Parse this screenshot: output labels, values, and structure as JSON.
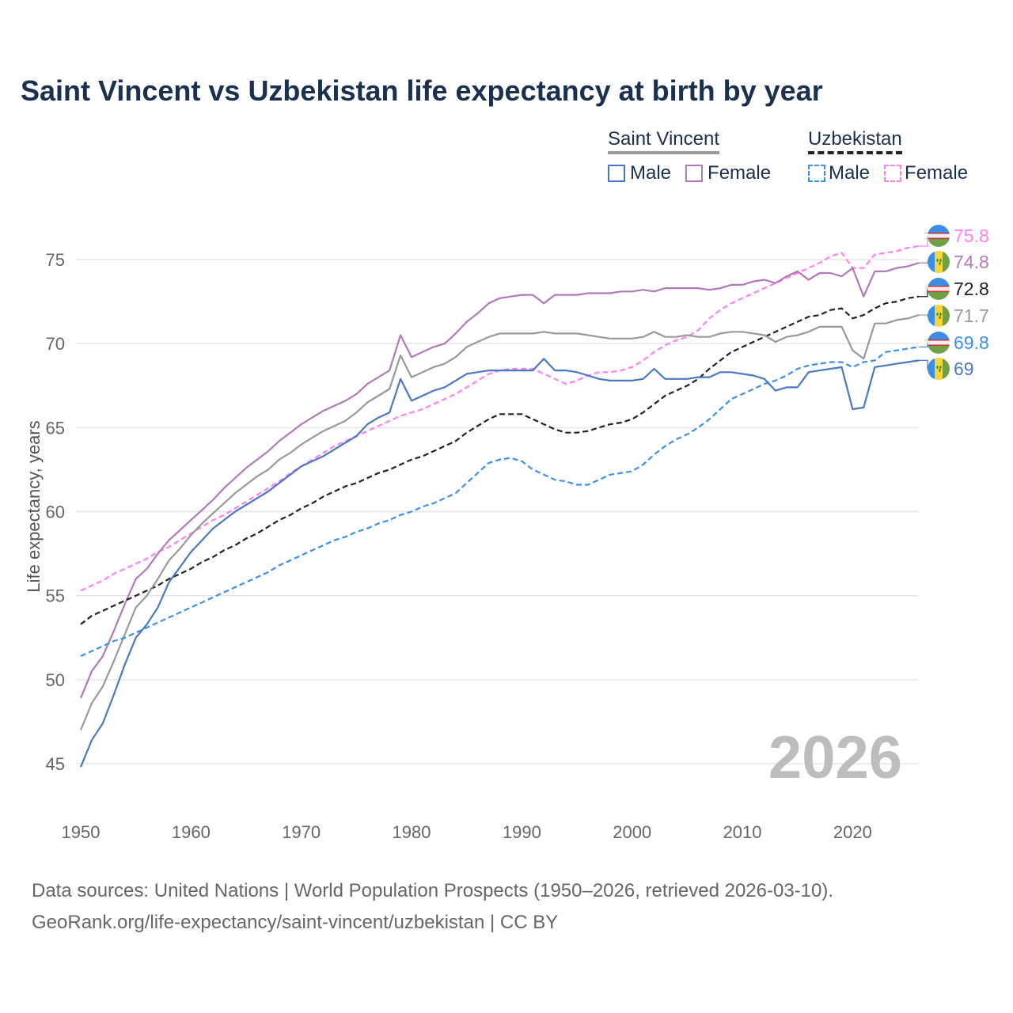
{
  "chart_data": {
    "type": "line",
    "title": "Saint Vincent vs Uzbekistan life expectancy at birth by year",
    "xlabel": "",
    "ylabel": "Life expectancy, years",
    "xlim": [
      1950,
      2026
    ],
    "ylim": [
      43,
      77
    ],
    "x_ticks": [
      1950,
      1960,
      1970,
      1980,
      1990,
      2000,
      2010,
      2020
    ],
    "x_tick_labels": [
      "1950",
      "1960",
      "1970",
      "1980",
      "1990",
      "2000",
      "2010",
      "2020"
    ],
    "y_ticks": [
      45,
      50,
      55,
      60,
      65,
      70,
      75
    ],
    "y_tick_labels": [
      "45",
      "50",
      "55",
      "60",
      "65",
      "70",
      "75"
    ],
    "grid": true,
    "watermark_year": "2026",
    "legend": {
      "placement": "top-right",
      "groups": [
        {
          "label": "Saint Vincent",
          "items": [
            "Male",
            "Female"
          ]
        },
        {
          "label": "Uzbekistan",
          "items": [
            "Male",
            "Female"
          ]
        }
      ]
    },
    "x_start": 1950,
    "series": [
      {
        "name": "Uzbekistan Female",
        "color": "#ff80f0",
        "dashed": true,
        "flag": "uzbekistan",
        "end_label": "75.8",
        "values": [
          55.3,
          55.6,
          55.9,
          56.3,
          56.6,
          56.9,
          57.2,
          57.6,
          57.9,
          58.3,
          58.7,
          59.1,
          59.5,
          59.8,
          60.2,
          60.6,
          61.0,
          61.4,
          61.8,
          62.3,
          62.7,
          63.1,
          63.5,
          63.9,
          64.2,
          64.5,
          64.8,
          65.1,
          65.4,
          65.7,
          65.9,
          66.1,
          66.4,
          66.7,
          67.0,
          67.4,
          67.8,
          68.2,
          68.4,
          68.5,
          68.5,
          68.5,
          68.2,
          67.9,
          67.6,
          67.8,
          68.1,
          68.3,
          68.3,
          68.4,
          68.6,
          69.0,
          69.5,
          69.9,
          70.2,
          70.4,
          70.8,
          71.5,
          72.0,
          72.4,
          72.7,
          73.0,
          73.3,
          73.6,
          73.9,
          74.2,
          74.5,
          74.8,
          75.2,
          75.4,
          74.5,
          74.5,
          75.3,
          75.4,
          75.5,
          75.7,
          75.8
        ]
      },
      {
        "name": "Saint Vincent Female",
        "color": "#b07ab8",
        "dashed": false,
        "flag": "saint-vincent",
        "end_label": "74.8",
        "values": [
          48.9,
          50.5,
          51.4,
          52.9,
          54.5,
          56.0,
          56.6,
          57.5,
          58.3,
          58.9,
          59.5,
          60.1,
          60.7,
          61.4,
          62.0,
          62.6,
          63.1,
          63.6,
          64.2,
          64.7,
          65.2,
          65.6,
          66.0,
          66.3,
          66.6,
          67.0,
          67.6,
          68.0,
          68.4,
          70.5,
          69.2,
          69.5,
          69.8,
          70.0,
          70.6,
          71.3,
          71.8,
          72.4,
          72.7,
          72.8,
          72.9,
          72.9,
          72.4,
          72.9,
          72.9,
          72.9,
          73.0,
          73.0,
          73.0,
          73.1,
          73.1,
          73.2,
          73.1,
          73.3,
          73.3,
          73.3,
          73.3,
          73.2,
          73.3,
          73.5,
          73.5,
          73.7,
          73.8,
          73.6,
          74.0,
          74.3,
          73.8,
          74.2,
          74.2,
          74.0,
          74.5,
          72.8,
          74.3,
          74.3,
          74.5,
          74.6,
          74.8
        ]
      },
      {
        "name": "Uzbekistan",
        "color": "#222222",
        "dashed": true,
        "flag": "uzbekistan",
        "end_label": "72.8",
        "values": [
          53.3,
          53.8,
          54.1,
          54.4,
          54.7,
          55.0,
          55.3,
          55.6,
          56.0,
          56.3,
          56.6,
          57.0,
          57.3,
          57.7,
          58.0,
          58.4,
          58.7,
          59.1,
          59.5,
          59.8,
          60.2,
          60.5,
          60.9,
          61.2,
          61.5,
          61.7,
          62.0,
          62.3,
          62.5,
          62.8,
          63.1,
          63.3,
          63.6,
          63.9,
          64.2,
          64.7,
          65.1,
          65.5,
          65.8,
          65.8,
          65.8,
          65.5,
          65.2,
          64.9,
          64.7,
          64.7,
          64.8,
          65.0,
          65.2,
          65.3,
          65.5,
          65.9,
          66.4,
          66.9,
          67.2,
          67.5,
          67.9,
          68.5,
          69.0,
          69.5,
          69.8,
          70.1,
          70.4,
          70.7,
          71.0,
          71.3,
          71.6,
          71.7,
          72.0,
          72.1,
          71.5,
          71.7,
          72.1,
          72.4,
          72.5,
          72.7,
          72.8
        ]
      },
      {
        "name": "Saint Vincent",
        "color": "#999999",
        "dashed": false,
        "flag": "saint-vincent",
        "end_label": "71.7",
        "values": [
          47.0,
          48.6,
          49.6,
          51.1,
          52.7,
          54.3,
          55.0,
          56.0,
          57.1,
          57.8,
          58.6,
          59.3,
          59.9,
          60.5,
          61.1,
          61.6,
          62.1,
          62.5,
          63.1,
          63.5,
          64.0,
          64.4,
          64.8,
          65.1,
          65.4,
          65.9,
          66.5,
          66.9,
          67.3,
          69.3,
          68.0,
          68.3,
          68.6,
          68.8,
          69.2,
          69.8,
          70.1,
          70.4,
          70.6,
          70.6,
          70.6,
          70.6,
          70.7,
          70.6,
          70.6,
          70.6,
          70.5,
          70.4,
          70.3,
          70.3,
          70.3,
          70.4,
          70.7,
          70.4,
          70.4,
          70.5,
          70.4,
          70.4,
          70.6,
          70.7,
          70.7,
          70.6,
          70.5,
          70.1,
          70.4,
          70.5,
          70.7,
          71.0,
          71.0,
          71.0,
          69.6,
          69.1,
          71.2,
          71.2,
          71.4,
          71.5,
          71.7
        ]
      },
      {
        "name": "Uzbekistan Male",
        "color": "#3d8ef5",
        "dashed": true,
        "flag": "uzbekistan",
        "end_label": "69.8",
        "values": [
          51.4,
          51.7,
          52.0,
          52.3,
          52.5,
          52.8,
          53.1,
          53.4,
          53.7,
          54.0,
          54.3,
          54.6,
          54.9,
          55.2,
          55.5,
          55.8,
          56.1,
          56.4,
          56.8,
          57.1,
          57.4,
          57.7,
          58.0,
          58.3,
          58.5,
          58.8,
          59.0,
          59.3,
          59.5,
          59.8,
          60.0,
          60.3,
          60.5,
          60.8,
          61.1,
          61.7,
          62.3,
          62.9,
          63.1,
          63.2,
          63.0,
          62.5,
          62.2,
          61.9,
          61.8,
          61.6,
          61.6,
          61.9,
          62.2,
          62.3,
          62.4,
          62.8,
          63.4,
          63.9,
          64.3,
          64.6,
          65.0,
          65.5,
          66.1,
          66.7,
          67.0,
          67.3,
          67.6,
          67.8,
          68.1,
          68.5,
          68.7,
          68.8,
          68.9,
          68.9,
          68.6,
          68.9,
          69.0,
          69.5,
          69.6,
          69.7,
          69.8
        ]
      },
      {
        "name": "Saint Vincent Male",
        "color": "#4a78c4",
        "dashed": false,
        "flag": "saint-vincent",
        "end_label": "69",
        "values": [
          44.8,
          46.4,
          47.4,
          49.1,
          50.9,
          52.5,
          53.3,
          54.3,
          55.8,
          56.7,
          57.6,
          58.3,
          59.0,
          59.5,
          60.0,
          60.4,
          60.8,
          61.2,
          61.7,
          62.2,
          62.7,
          63.0,
          63.3,
          63.7,
          64.1,
          64.5,
          65.2,
          65.6,
          65.9,
          67.9,
          66.6,
          66.9,
          67.2,
          67.4,
          67.8,
          68.2,
          68.3,
          68.4,
          68.4,
          68.4,
          68.4,
          68.4,
          69.1,
          68.4,
          68.4,
          68.3,
          68.1,
          67.9,
          67.8,
          67.8,
          67.8,
          67.9,
          68.5,
          67.9,
          67.9,
          67.9,
          68.0,
          68.0,
          68.3,
          68.3,
          68.2,
          68.1,
          67.9,
          67.2,
          67.4,
          67.4,
          68.3,
          68.4,
          68.5,
          68.6,
          66.1,
          66.2,
          68.6,
          68.7,
          68.8,
          68.9,
          69.0
        ]
      }
    ]
  },
  "footer": {
    "line1": "Data sources: United Nations | World Population Prospects (1950–2026, retrieved 2026-03-10).",
    "line2": "GeoRank.org/life-expectancy/saint-vincent/uzbekistan | CC BY"
  }
}
